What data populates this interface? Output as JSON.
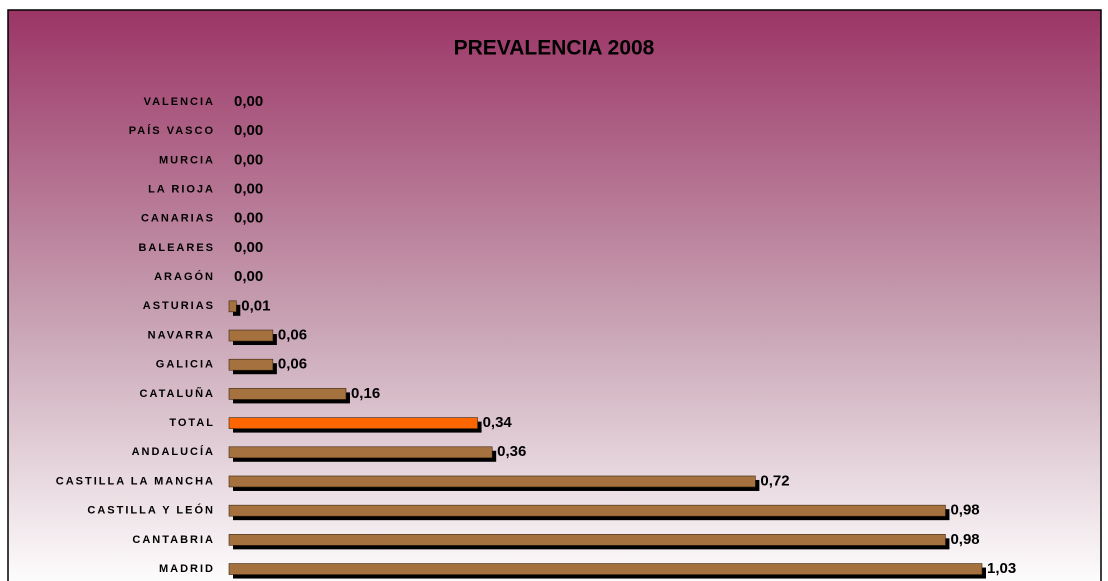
{
  "chart_data": {
    "type": "hbar",
    "title": "PREVALENCIA 2008",
    "categories": [
      "VALENCIA",
      "PAÍS VASCO",
      "MURCIA",
      "LA RIOJA",
      "CANARIAS",
      "BALEARES",
      "ARAGÓN",
      "ASTURIAS",
      "NAVARRA",
      "GALICIA",
      "CATALUÑA",
      "TOTAL",
      "ANDALUCÍA",
      "CASTILLA LA MANCHA",
      "CASTILLA Y LEÓN",
      "CANTABRIA",
      "MADRID"
    ],
    "values": [
      0,
      0,
      0,
      0,
      0,
      0,
      0,
      0.01,
      0.06,
      0.06,
      0.16,
      0.34,
      0.36,
      0.72,
      0.98,
      0.98,
      1.03
    ],
    "value_labels": [
      "0,00",
      "0,00",
      "0,00",
      "0,00",
      "0,00",
      "0,00",
      "0,00",
      "0,01",
      "0,06",
      "0,06",
      "0,16",
      "0,34",
      "0,36",
      "0,72",
      "0,98",
      "0,98",
      "1,03"
    ],
    "colors": [
      "#a5713f",
      "#a5713f",
      "#a5713f",
      "#a5713f",
      "#a5713f",
      "#a5713f",
      "#a5713f",
      "#a5713f",
      "#a5713f",
      "#a5713f",
      "#a5713f",
      "#ff6600",
      "#a5713f",
      "#a5713f",
      "#a5713f",
      "#a5713f",
      "#a5713f"
    ]
  }
}
